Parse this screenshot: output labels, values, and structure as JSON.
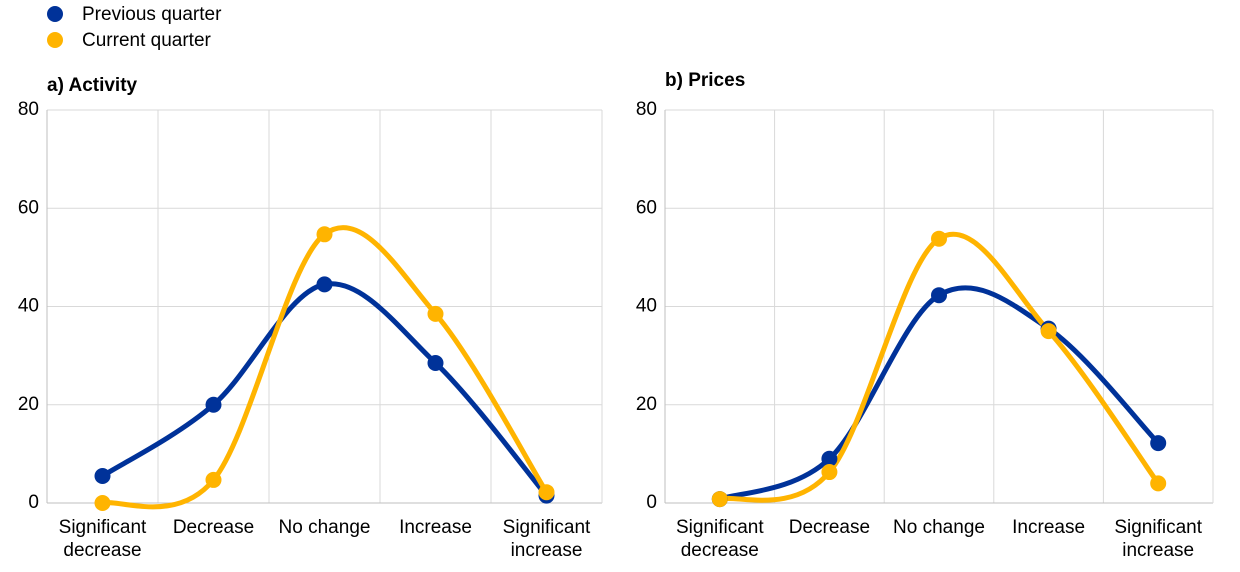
{
  "chart_data": [
    {
      "type": "line",
      "title": "a) Activity",
      "categories": [
        "Significant decrease",
        "Decrease",
        "No change",
        "Increase",
        "Significant increase"
      ],
      "series": [
        {
          "name": "Previous quarter",
          "color": "#003299",
          "values": [
            5.5,
            20,
            44.5,
            28.5,
            1.5
          ]
        },
        {
          "name": "Current quarter",
          "color": "#ffb400",
          "values": [
            0,
            4.7,
            54.7,
            38.5,
            2.2
          ]
        }
      ],
      "ylim": [
        0,
        80
      ],
      "yticks": [
        0,
        20,
        40,
        60,
        80
      ],
      "grid": true,
      "smooth": true
    },
    {
      "type": "line",
      "title": "b) Prices",
      "categories": [
        "Significant decrease",
        "Decrease",
        "No change",
        "Increase",
        "Significant increase"
      ],
      "series": [
        {
          "name": "Previous quarter",
          "color": "#003299",
          "values": [
            0.8,
            9,
            42.3,
            35.5,
            12.2
          ]
        },
        {
          "name": "Current quarter",
          "color": "#ffb400",
          "values": [
            0.8,
            6.3,
            53.8,
            35,
            4
          ]
        }
      ],
      "ylim": [
        0,
        80
      ],
      "yticks": [
        0,
        20,
        40,
        60,
        80
      ],
      "grid": true,
      "smooth": true
    }
  ]
}
